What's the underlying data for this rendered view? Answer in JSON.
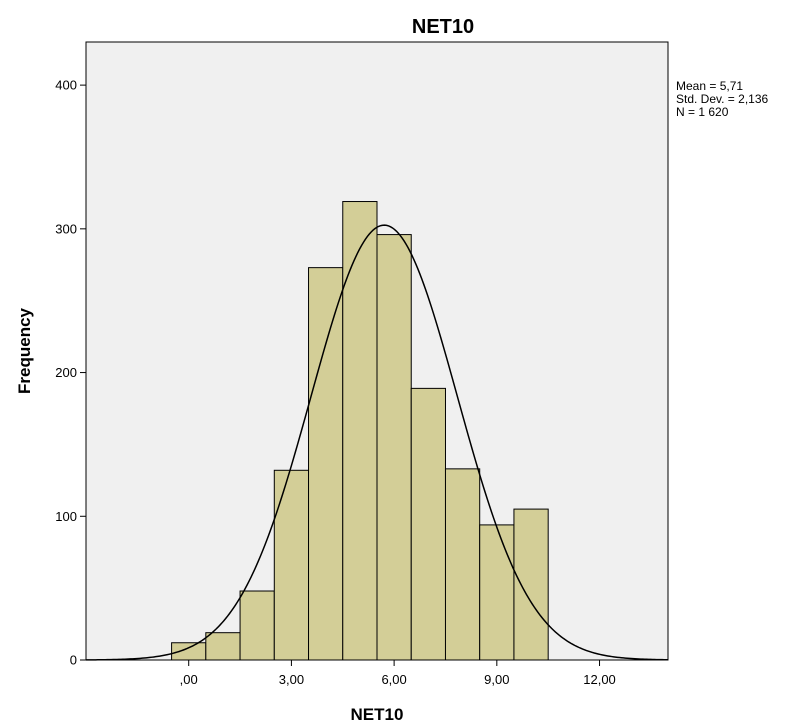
{
  "chart_data": {
    "type": "bar",
    "title": "NET10",
    "xlabel": "NET10",
    "ylabel": "Frequency",
    "x_ticks": [
      0,
      3,
      6,
      9,
      12
    ],
    "x_tick_labels": [
      ",00",
      "3,00",
      "6,00",
      "9,00",
      "12,00"
    ],
    "y_ticks": [
      0,
      100,
      200,
      300,
      400
    ],
    "y_tick_labels": [
      "0",
      "100",
      "200",
      "300",
      "400"
    ],
    "xlim": [
      -3,
      14
    ],
    "ylim": [
      0,
      430
    ],
    "bin_width": 1,
    "bins": [
      {
        "center": 0,
        "count": 12
      },
      {
        "center": 1,
        "count": 19
      },
      {
        "center": 2,
        "count": 48
      },
      {
        "center": 3,
        "count": 132
      },
      {
        "center": 4,
        "count": 273
      },
      {
        "center": 5,
        "count": 319
      },
      {
        "center": 6,
        "count": 296
      },
      {
        "center": 7,
        "count": 189
      },
      {
        "center": 8,
        "count": 133
      },
      {
        "center": 9,
        "count": 94
      },
      {
        "center": 10,
        "count": 105
      }
    ],
    "normal_curve": {
      "mean": 5.71,
      "std_dev": 2.136,
      "n": 1620
    },
    "stats_lines": [
      "Mean = 5,71",
      "Std. Dev. = 2,136",
      "N = 1 620"
    ],
    "colors": {
      "bar_fill": "#d3ce97",
      "plot_background": "#f0f0f0"
    },
    "grid": false
  }
}
